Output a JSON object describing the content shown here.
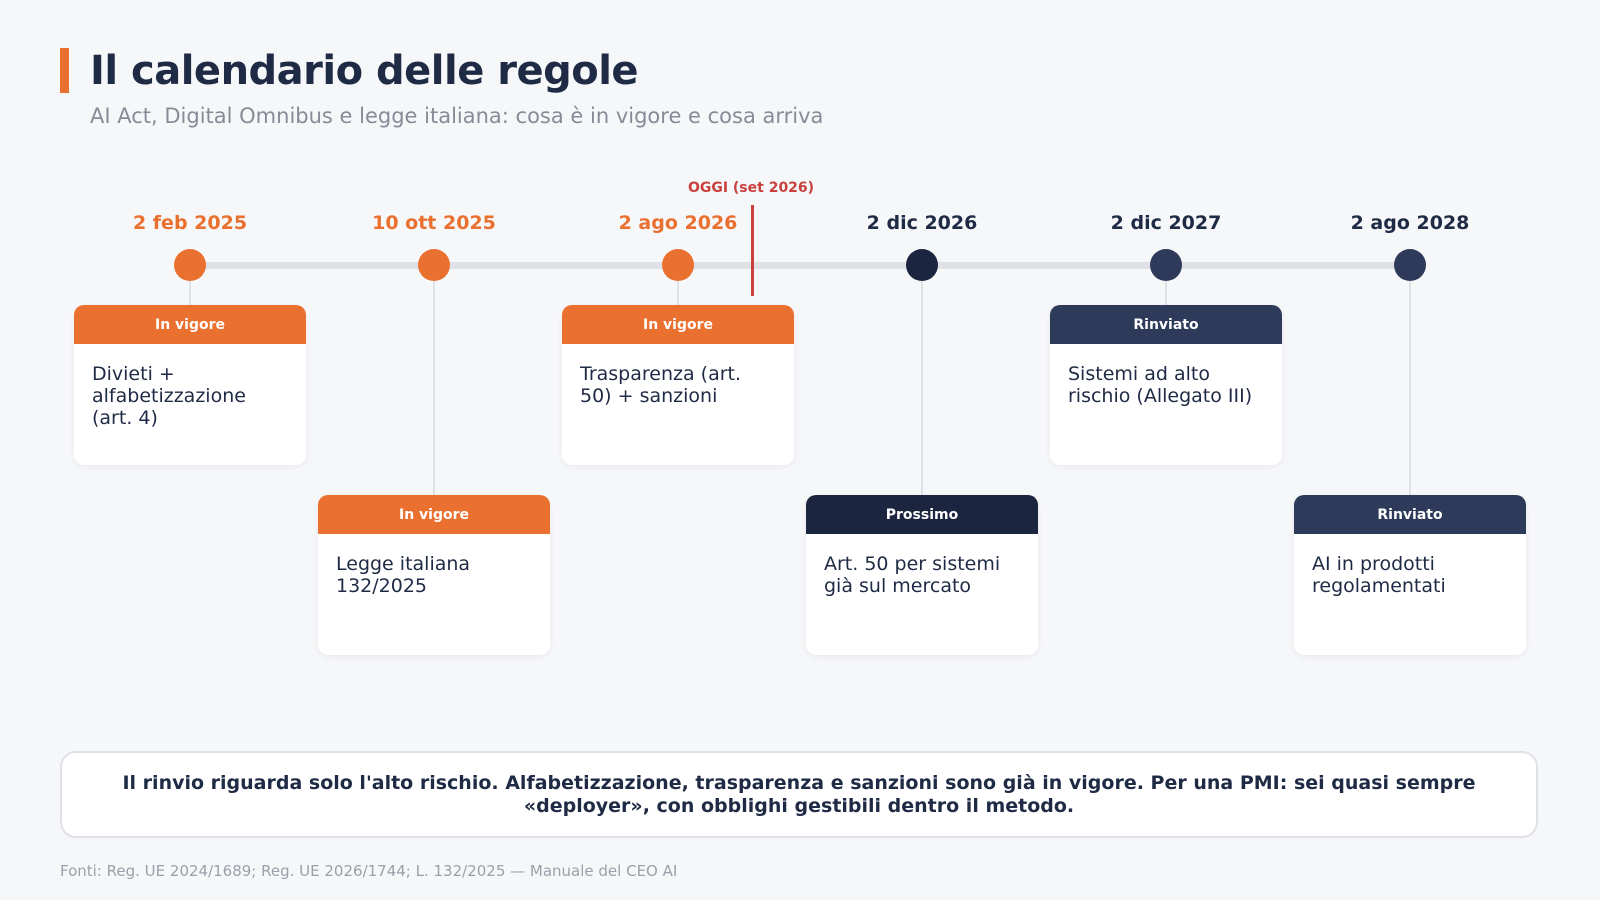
{
  "header": {
    "title": "Il calendario delle regole",
    "subtitle": "AI Act, Digital Omnibus e legge italiana: cosa è in vigore e cosa arriva"
  },
  "timeline": {
    "today_label": "OGGI (set 2026)",
    "milestones": [
      {
        "date": "2 feb 2025",
        "status": "In vigore",
        "text": "Divieti + alfabetizzazione (art. 4)",
        "color": "#ea7030"
      },
      {
        "date": "10 ott 2025",
        "status": "In vigore",
        "text": "Legge italiana 132/2025",
        "color": "#ea7030"
      },
      {
        "date": "2 ago 2026",
        "status": "In vigore",
        "text": "Trasparenza (art. 50) + sanzioni",
        "color": "#ea7030"
      },
      {
        "date": "2 dic 2026",
        "status": "Prossimo",
        "text": "Art. 50 per sistemi già sul mercato",
        "color": "#1c2540"
      },
      {
        "date": "2 dic 2027",
        "status": "Rinviato",
        "text": "Sistemi ad alto rischio (Allegato III)",
        "color": "#2d3a5a"
      },
      {
        "date": "2 ago 2028",
        "status": "Rinviato",
        "text": "AI in prodotti regolamentati",
        "color": "#2d3a5a"
      }
    ]
  },
  "callout": {
    "text": "Il rinvio riguarda solo l'alto rischio. Alfabetizzazione, trasparenza e sanzioni sono già in vigore. Per una PMI: sei quasi sempre «deployer», con obblighi gestibili dentro il metodo."
  },
  "footer": {
    "source": "Fonti: Reg. UE 2024/1689; Reg. UE 2026/1744; L. 132/2025 — Manuale del CEO AI"
  },
  "colors": {
    "accent": "#ea7030",
    "today": "#c8413d",
    "dark": "#1c2540",
    "navy": "#2d3a5a"
  }
}
